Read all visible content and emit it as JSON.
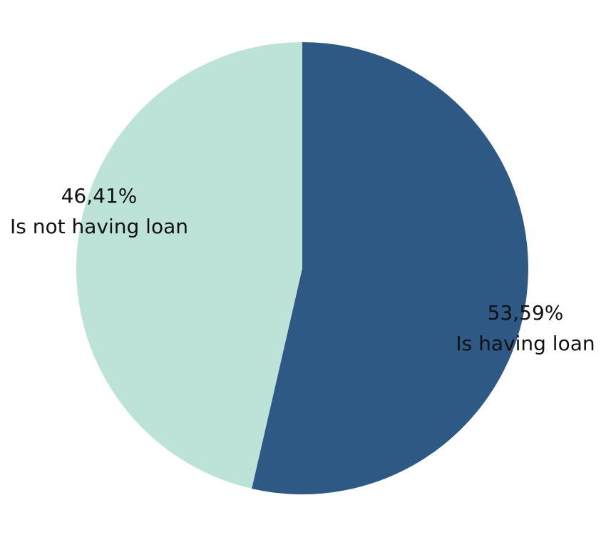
{
  "chart_data": {
    "type": "pie",
    "title": "",
    "slices": [
      {
        "label": "Is having loan",
        "value": 53.59,
        "display_value": "53,59%",
        "color": "#2e5984"
      },
      {
        "label": "Is not having loan",
        "value": 46.41,
        "display_value": "46,41%",
        "color": "#bde3d8"
      }
    ],
    "legend": "none",
    "start_angle": "12 o'clock",
    "direction": "clockwise"
  }
}
